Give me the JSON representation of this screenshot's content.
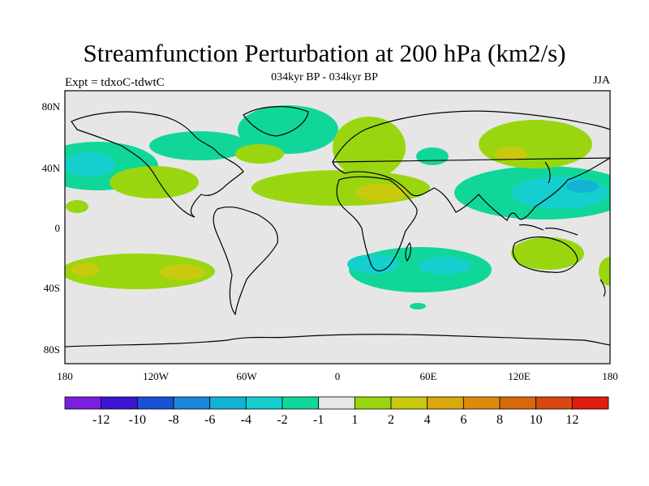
{
  "header": {
    "title": "Streamfunction Perturbation at 200 hPa (km2/s)",
    "subtitle": "034kyr BP - 034kyr BP",
    "expt": "Expt = tdxoC-tdwtC",
    "season": "JJA"
  },
  "map": {
    "lon_ticks": [
      "180",
      "120W",
      "60W",
      "0",
      "60E",
      "120E",
      "180"
    ],
    "lat_ticks": [
      "80N",
      "40N",
      "0",
      "40S",
      "80S"
    ],
    "ocean_color": "#e6e6e6"
  },
  "colorbar": {
    "colors": [
      "#7a1fe0",
      "#3d14d4",
      "#1a4fd6",
      "#1a86d9",
      "#12b2d6",
      "#15cfcf",
      "#11d69a",
      "#e6e6e6",
      "#99d60f",
      "#c9c90e",
      "#d9a80c",
      "#db8a0a",
      "#d9680a",
      "#d94710",
      "#e01c0f"
    ],
    "labels": [
      "-12",
      "-10",
      "-8",
      "-6",
      "-4",
      "-2",
      "-1",
      "1",
      "2",
      "4",
      "6",
      "8",
      "10",
      "12"
    ]
  }
}
